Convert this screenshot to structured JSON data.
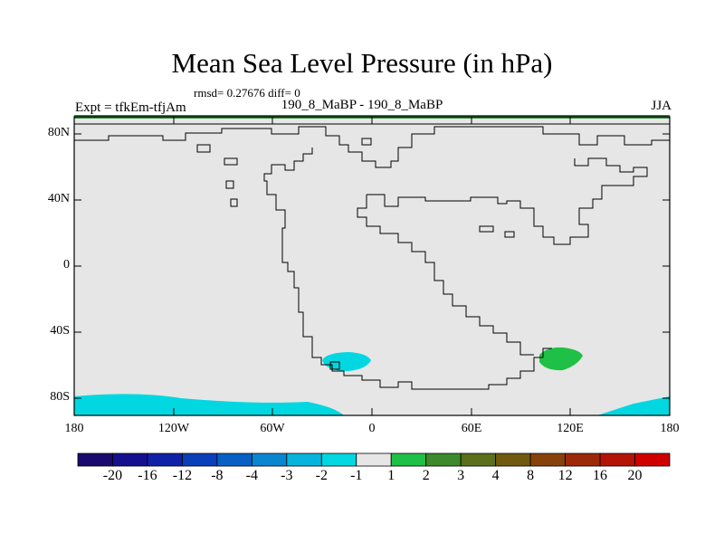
{
  "header": {
    "title": "Mean Sea Level Pressure (in hPa)",
    "stats": "rmsd= 0.27676 diff= 0",
    "experiment": "Expt = tfkEm-tfjAm",
    "comparison": "190_8_MaBP - 190_8_MaBP",
    "season": "JJA"
  },
  "map": {
    "lat_labels": [
      "80N",
      "40N",
      "0",
      "40S",
      "80S"
    ],
    "lon_labels": [
      "180",
      "120W",
      "60W",
      "0",
      "60E",
      "120E",
      "180"
    ],
    "ocean_color": "#e6e6e6",
    "anomaly_regions": [
      {
        "value_bin": "-2 to -1",
        "color": "#00d7e0",
        "location": "southern ocean near 20W, 55S"
      },
      {
        "value_bin": "-2 to -1",
        "color": "#00d7e0",
        "location": "Antarctic margin"
      },
      {
        "value_bin": "1 to 2",
        "color": "#1fc046",
        "location": "southern ocean near 115E, 55S"
      }
    ]
  },
  "colorbar": {
    "labels": [
      "-20",
      "-16",
      "-12",
      "-8",
      "-4",
      "-3",
      "-2",
      "-1",
      "1",
      "2",
      "3",
      "4",
      "8",
      "12",
      "16",
      "20"
    ],
    "colors": [
      "#1a0a6e",
      "#14108f",
      "#1021a8",
      "#0a3fba",
      "#0860c5",
      "#0a86d0",
      "#08b4dc",
      "#00d7e0",
      "#e6e6e6",
      "#1fc046",
      "#3c8a2c",
      "#5a701c",
      "#6f5a10",
      "#86420a",
      "#9c2a08",
      "#b41408",
      "#d00000"
    ]
  }
}
